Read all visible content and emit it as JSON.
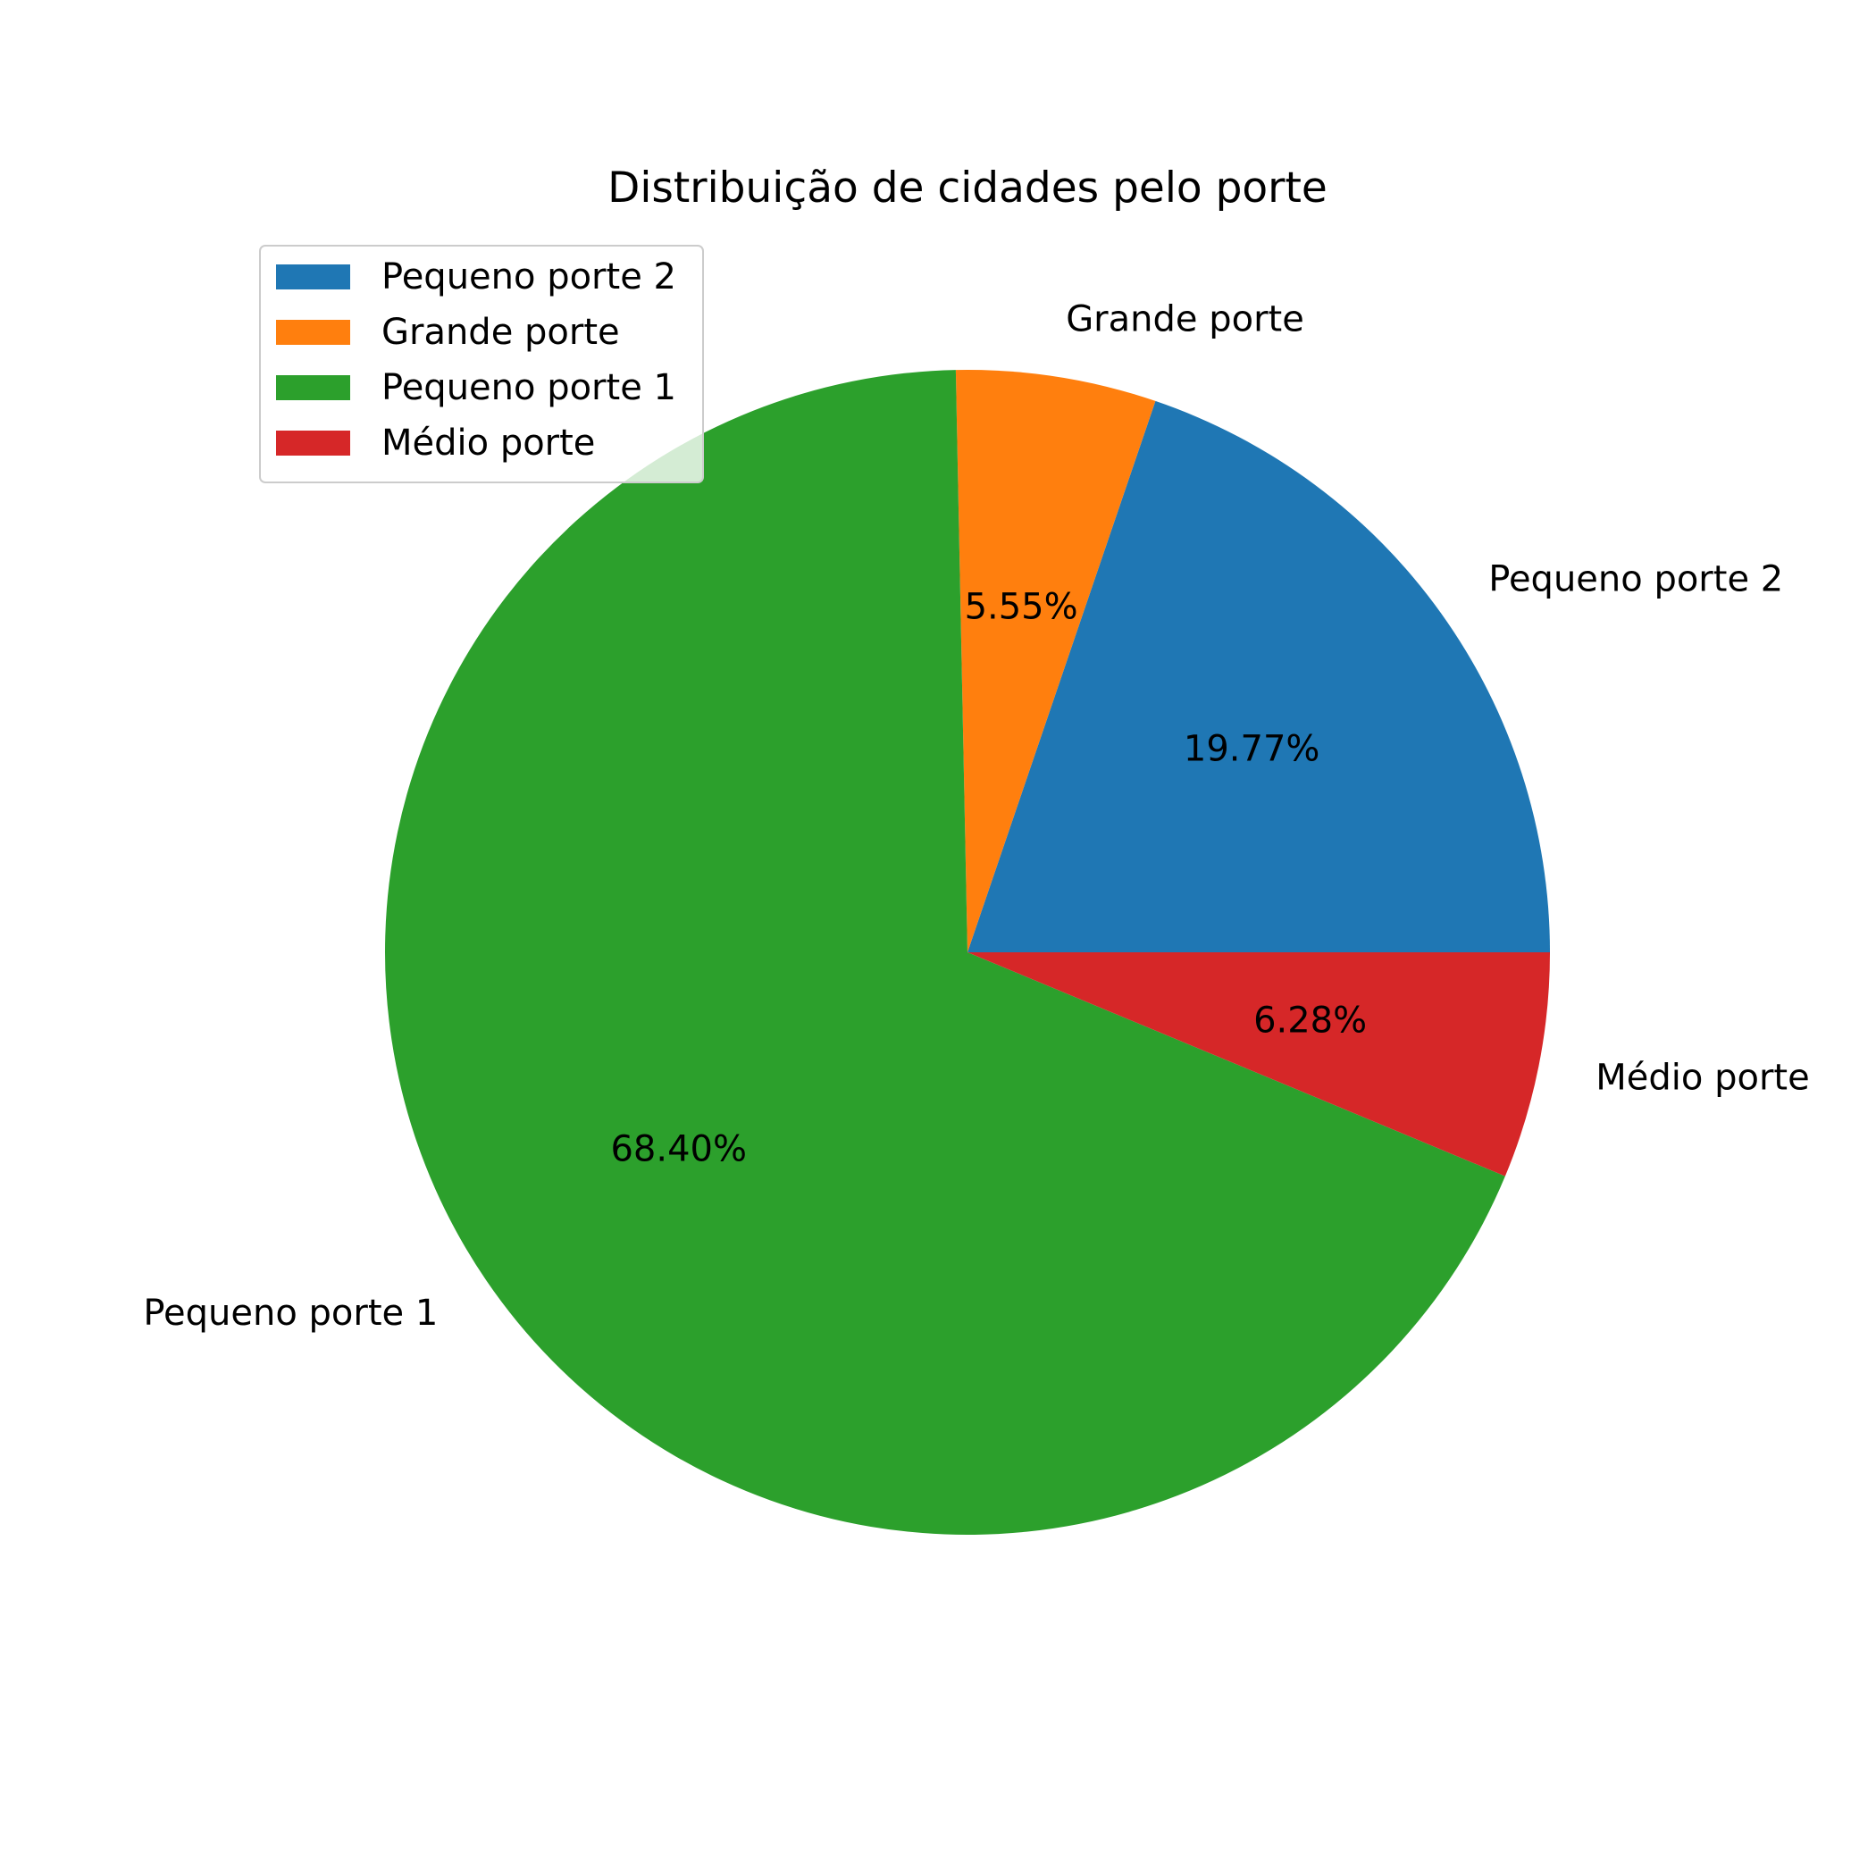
{
  "chart_data": {
    "type": "pie",
    "title": "Distribuição de cidades pelo porte",
    "start_angle_deg": 0,
    "direction": "counterclockwise",
    "legend_position": "top-left",
    "slices": [
      {
        "label": "Pequeno porte 2",
        "value": 19.77,
        "pct_label": "19.77%",
        "color": "#1f77b4"
      },
      {
        "label": "Grande porte",
        "value": 5.55,
        "pct_label": "5.55%",
        "color": "#ff7f0e"
      },
      {
        "label": "Pequeno porte 1",
        "value": 68.4,
        "pct_label": "68.40%",
        "color": "#2ca02c"
      },
      {
        "label": "Médio porte",
        "value": 6.28,
        "pct_label": "6.28%",
        "color": "#d62728"
      }
    ]
  }
}
